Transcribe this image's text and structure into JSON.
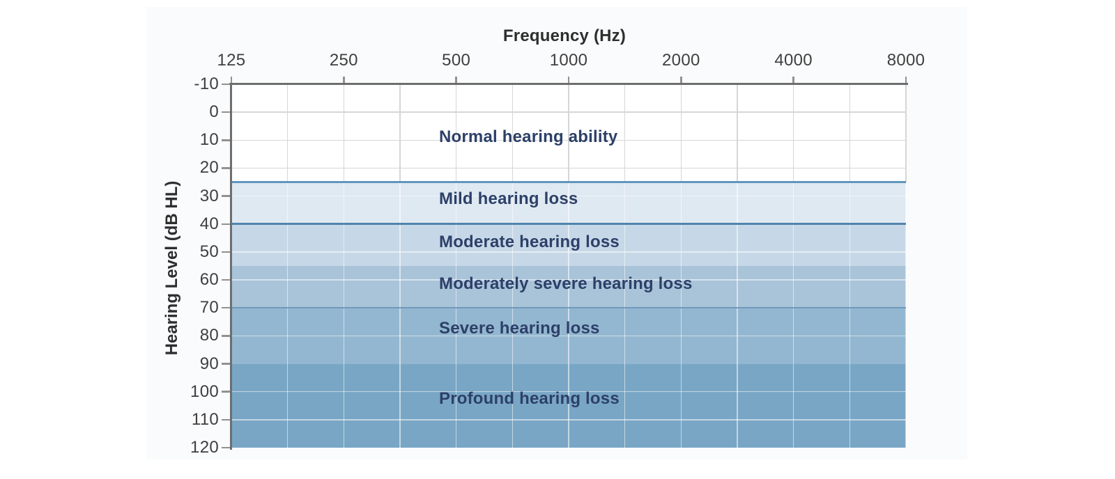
{
  "chart_data": {
    "type": "area",
    "subtype": "audiogram-severity-bands",
    "title": "",
    "x_axis": {
      "label": "Frequency (Hz)",
      "ticks": [
        "125",
        "250",
        "500",
        "1000",
        "2000",
        "4000",
        "8000"
      ],
      "scale": "log-octave",
      "minor_gridline_between_each_tick": true
    },
    "y_axis": {
      "label": "Hearing Level (dB HL)",
      "ticks": [
        "-10",
        "0",
        "10",
        "20",
        "30",
        "40",
        "50",
        "60",
        "70",
        "80",
        "90",
        "100",
        "110",
        "120"
      ],
      "range": [
        -10,
        120
      ],
      "inverted": true,
      "units": "dB HL"
    },
    "bands": [
      {
        "label": "Normal hearing ability",
        "from_db": -10,
        "to_db": 25,
        "color": "#ffffff",
        "label_db": 9,
        "top_line": ""
      },
      {
        "label": "Mild hearing loss",
        "from_db": 25,
        "to_db": 40,
        "color": "#dfe9f2",
        "label_db": 31,
        "top_line": "#6095bb"
      },
      {
        "label": "Moderate hearing loss",
        "from_db": 40,
        "to_db": 55,
        "color": "#c6d8e7",
        "label_db": 46.5,
        "top_line": "#5084ae"
      },
      {
        "label": "Moderately severe hearing loss",
        "from_db": 55,
        "to_db": 70,
        "color": "#a9c3d9",
        "label_db": 61.5,
        "top_line": ""
      },
      {
        "label": "Severe hearing loss",
        "from_db": 70,
        "to_db": 90,
        "color": "#93b7d0",
        "label_db": 77.5,
        "top_line": "#7099bb"
      },
      {
        "label": "Profound hearing loss",
        "from_db": 90,
        "to_db": 120,
        "color": "#79a6c5",
        "label_db": 102.5,
        "top_line": ""
      }
    ],
    "grid": true,
    "legend": "none",
    "gray_grid_rows_db": [
      0,
      10,
      20
    ],
    "white_grid_rows_db": [
      30,
      50,
      60,
      80,
      100,
      110
    ]
  },
  "colors": {
    "band_label_text": "#2d4068",
    "axis_line": "#6e6e6e",
    "tick_label": "#3f3f3f",
    "grid_gray": "#d6d6d6",
    "grid_white": "rgba(255,255,255,0.55)",
    "card_background": "#fafbfc"
  }
}
